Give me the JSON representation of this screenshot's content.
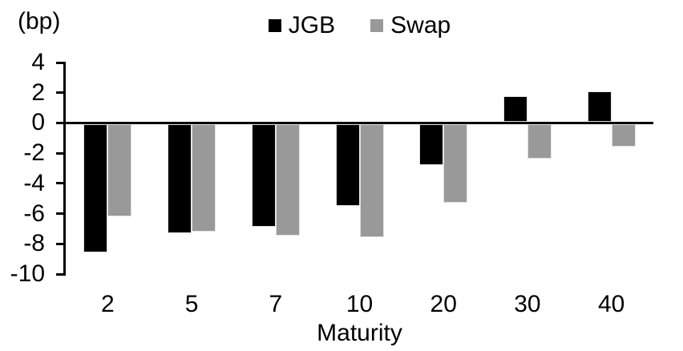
{
  "chart_data": {
    "type": "bar",
    "title": "",
    "unit_label": "(bp)",
    "xlabel": "Maturity",
    "ylabel": "",
    "categories": [
      "2",
      "5",
      "7",
      "10",
      "20",
      "30",
      "40"
    ],
    "series": [
      {
        "name": "JGB",
        "color": "#000000",
        "values": [
          -8.5,
          -7.2,
          -6.8,
          -5.4,
          -2.7,
          1.7,
          2.0
        ]
      },
      {
        "name": "Swap",
        "color": "#999999",
        "values": [
          -6.1,
          -7.1,
          -7.4,
          -7.5,
          -5.2,
          -2.3,
          -1.5
        ]
      }
    ],
    "ylim": [
      -10,
      4
    ],
    "yticks": [
      4,
      2,
      0,
      -2,
      -4,
      -6,
      -8,
      -10
    ],
    "grid": false,
    "legend_position": "top-center",
    "axis_color": "#000000",
    "background_color": "#ffffff"
  }
}
